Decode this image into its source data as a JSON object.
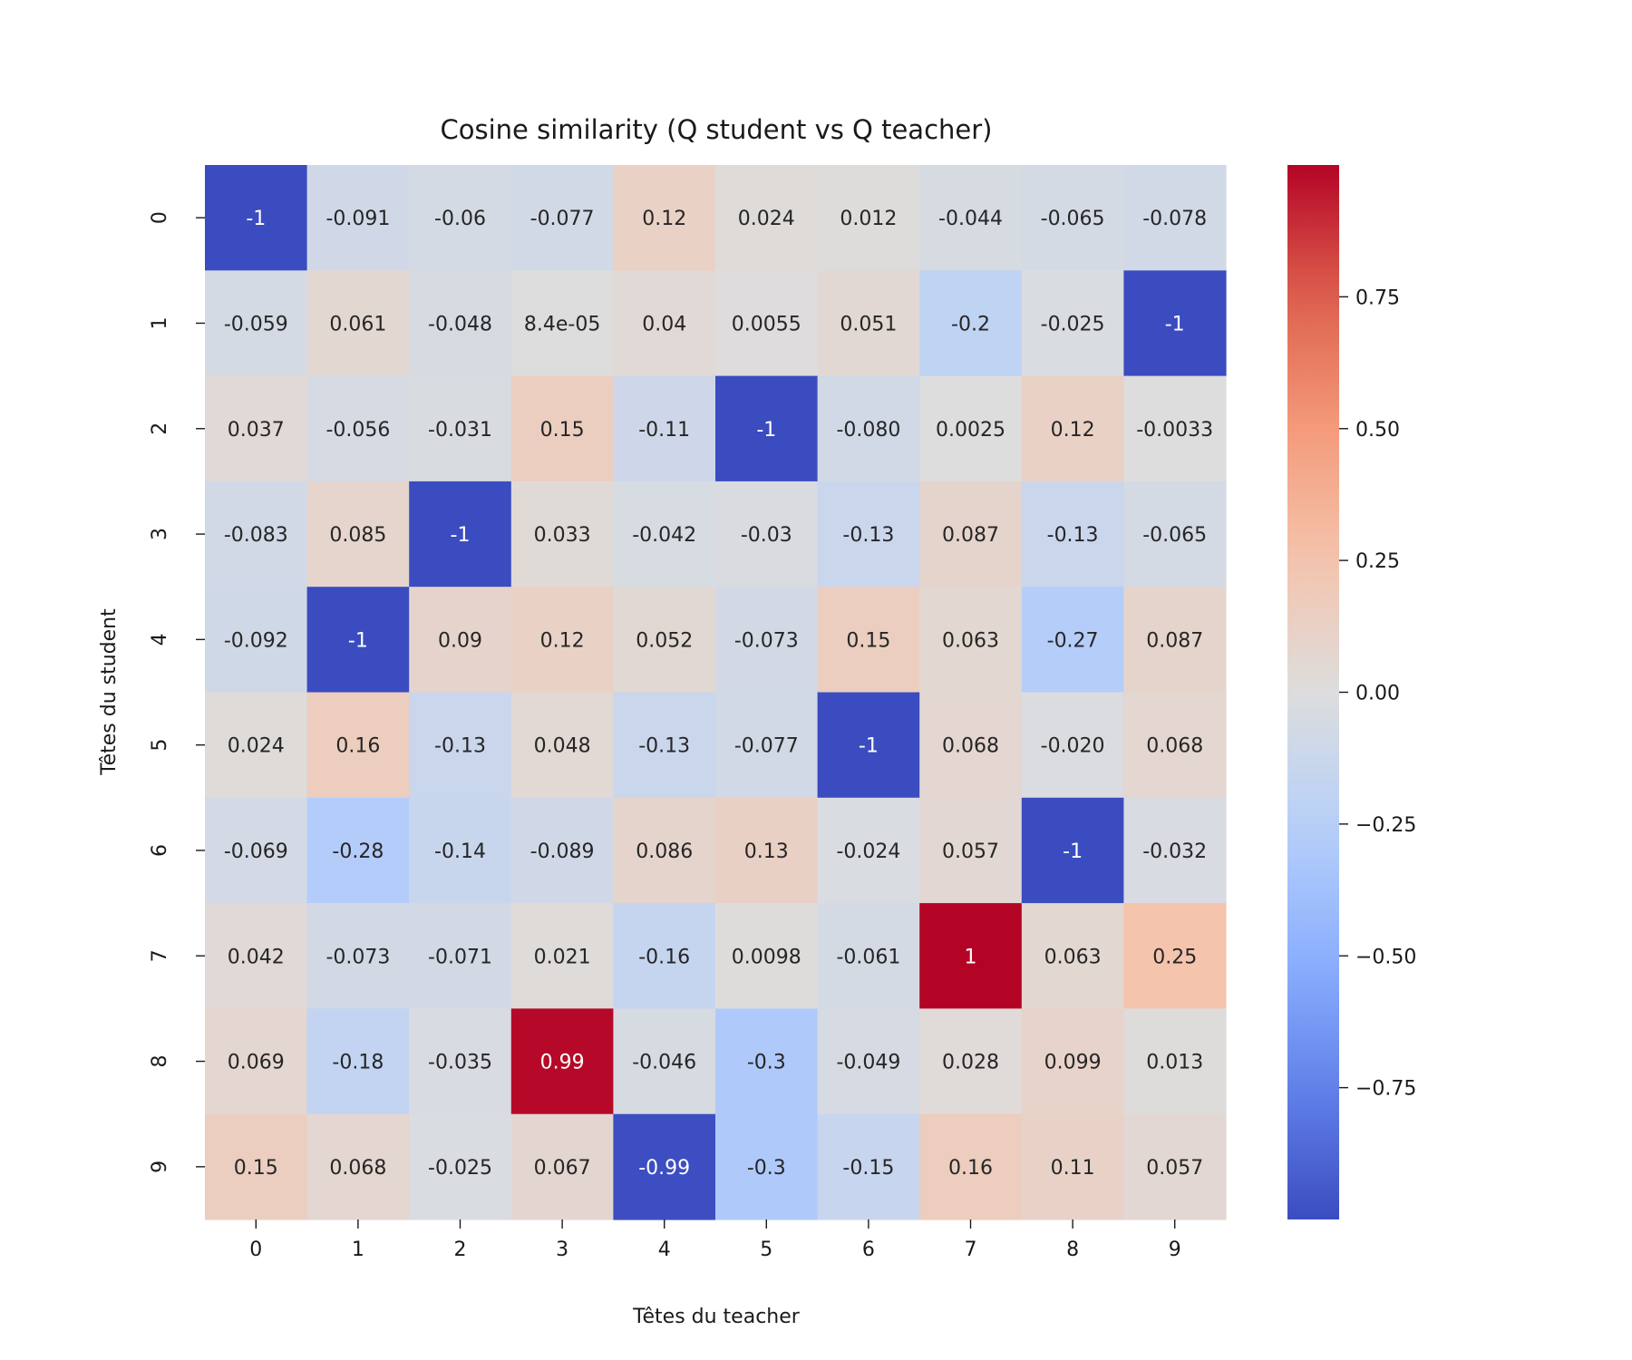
{
  "chart_data": {
    "type": "heatmap",
    "title": "Cosine similarity (Q student vs Q teacher)",
    "xlabel": "Têtes du teacher",
    "ylabel": "Têtes du student",
    "x_categories": [
      "0",
      "1",
      "2",
      "3",
      "4",
      "5",
      "6",
      "7",
      "8",
      "9"
    ],
    "y_categories": [
      "0",
      "1",
      "2",
      "3",
      "4",
      "5",
      "6",
      "7",
      "8",
      "9"
    ],
    "values": [
      [
        -1,
        -0.091,
        -0.06,
        -0.077,
        0.12,
        0.024,
        0.012,
        -0.044,
        -0.065,
        -0.078
      ],
      [
        -0.059,
        0.061,
        -0.048,
        8.4e-05,
        0.04,
        0.0055,
        0.051,
        -0.2,
        -0.025,
        -1
      ],
      [
        0.037,
        -0.056,
        -0.031,
        0.15,
        -0.11,
        -1,
        -0.08,
        0.0025,
        0.12,
        -0.0033
      ],
      [
        -0.083,
        0.085,
        -1,
        0.033,
        -0.042,
        -0.03,
        -0.13,
        0.087,
        -0.13,
        -0.065
      ],
      [
        -0.092,
        -1,
        0.09,
        0.12,
        0.052,
        -0.073,
        0.15,
        0.063,
        -0.27,
        0.087
      ],
      [
        0.024,
        0.16,
        -0.13,
        0.048,
        -0.13,
        -0.077,
        -1,
        0.068,
        -0.02,
        0.068
      ],
      [
        -0.069,
        -0.28,
        -0.14,
        -0.089,
        0.086,
        0.13,
        -0.024,
        0.057,
        -1,
        -0.032
      ],
      [
        0.042,
        -0.073,
        -0.071,
        0.021,
        -0.16,
        0.0098,
        -0.061,
        1,
        0.063,
        0.25
      ],
      [
        0.069,
        -0.18,
        -0.035,
        0.99,
        -0.046,
        -0.3,
        -0.049,
        0.028,
        0.099,
        0.013
      ],
      [
        0.15,
        0.068,
        -0.025,
        0.067,
        -0.99,
        -0.3,
        -0.15,
        0.16,
        0.11,
        0.057
      ]
    ],
    "cell_labels": [
      [
        "-1",
        "-0.091",
        "-0.06",
        "-0.077",
        "0.12",
        "0.024",
        "0.012",
        "-0.044",
        "-0.065",
        "-0.078"
      ],
      [
        "-0.059",
        "0.061",
        "-0.048",
        "8.4e-05",
        "0.04",
        "0.0055",
        "0.051",
        "-0.2",
        "-0.025",
        "-1"
      ],
      [
        "0.037",
        "-0.056",
        "-0.031",
        "0.15",
        "-0.11",
        "-1",
        "-0.080",
        "0.0025",
        "0.12",
        "-0.0033"
      ],
      [
        "-0.083",
        "0.085",
        "-1",
        "0.033",
        "-0.042",
        "-0.03",
        "-0.13",
        "0.087",
        "-0.13",
        "-0.065"
      ],
      [
        "-0.092",
        "-1",
        "0.09",
        "0.12",
        "0.052",
        "-0.073",
        "0.15",
        "0.063",
        "-0.27",
        "0.087"
      ],
      [
        "0.024",
        "0.16",
        "-0.13",
        "0.048",
        "-0.13",
        "-0.077",
        "-1",
        "0.068",
        "-0.020",
        "0.068"
      ],
      [
        "-0.069",
        "-0.28",
        "-0.14",
        "-0.089",
        "0.086",
        "0.13",
        "-0.024",
        "0.057",
        "-1",
        "-0.032"
      ],
      [
        "0.042",
        "-0.073",
        "-0.071",
        "0.021",
        "-0.16",
        "0.0098",
        "-0.061",
        "1",
        "0.063",
        "0.25"
      ],
      [
        "0.069",
        "-0.18",
        "-0.035",
        "0.99",
        "-0.046",
        "-0.3",
        "-0.049",
        "0.028",
        "0.099",
        "0.013"
      ],
      [
        "0.15",
        "0.068",
        "-0.025",
        "0.067",
        "-0.99",
        "-0.3",
        "-0.15",
        "0.16",
        "0.11",
        "0.057"
      ]
    ],
    "colormap": "coolwarm",
    "vmin": -1,
    "vmax": 1,
    "colorbar": {
      "ticks": [
        0.75,
        0.5,
        0.25,
        0.0,
        -0.25,
        -0.5,
        -0.75
      ],
      "tick_labels": [
        "0.75",
        "0.50",
        "0.25",
        "0.00",
        "−0.25",
        "−0.50",
        "−0.75"
      ],
      "low_color": "#3b4cc0",
      "mid_color": "#dddddd",
      "high_color": "#b40426"
    },
    "grid": false,
    "legend": "colorbar-right"
  }
}
